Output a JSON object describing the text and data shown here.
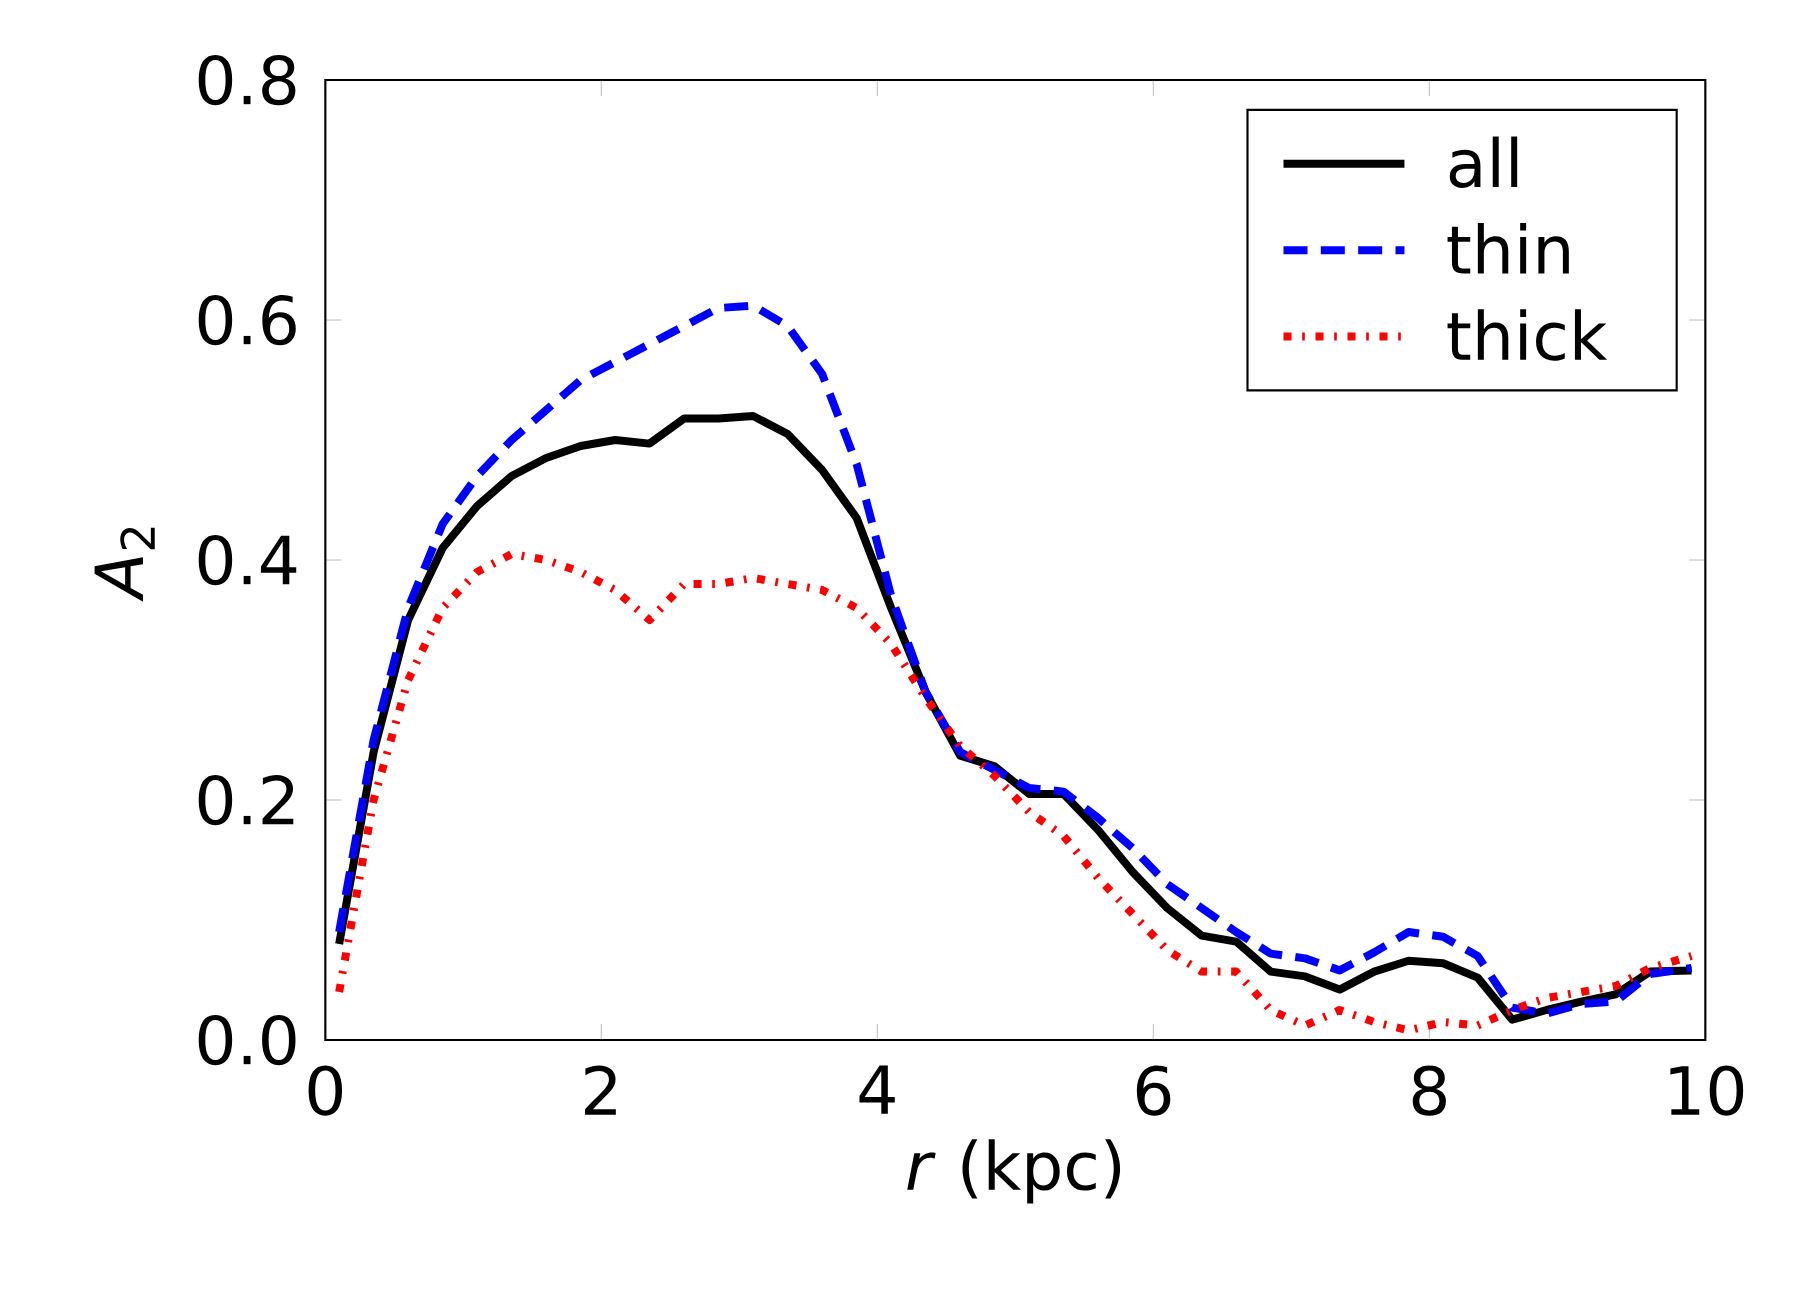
{
  "chart_data": {
    "type": "line",
    "xlabel": "*r* (kpc)",
    "ylabel": "*A*$_{2}$",
    "xlim": [
      0,
      10
    ],
    "ylim": [
      0,
      0.8
    ],
    "xticks": [
      0,
      2,
      4,
      6,
      8,
      10
    ],
    "yticks": [
      {
        "value": 0,
        "label": "0.0"
      },
      {
        "value": 0.2,
        "label": "0.2"
      },
      {
        "value": 0.4,
        "label": "0.4"
      },
      {
        "value": 0.6,
        "label": "0.6"
      },
      {
        "value": 0.8,
        "label": "0.8"
      }
    ],
    "x": [
      0.1,
      0.35,
      0.6,
      0.85,
      1.1,
      1.35,
      1.6,
      1.85,
      2.1,
      2.35,
      2.6,
      2.85,
      3.1,
      3.35,
      3.6,
      3.85,
      4.1,
      4.35,
      4.6,
      4.85,
      5.1,
      5.35,
      5.6,
      5.85,
      6.1,
      6.35,
      6.6,
      6.85,
      7.1,
      7.35,
      7.6,
      7.85,
      8.1,
      8.35,
      8.6,
      8.85,
      9.1,
      9.35,
      9.6,
      9.9
    ],
    "legend": "top right",
    "grid": false,
    "marker": "none",
    "series": [
      {
        "name": "all",
        "color": "#000000",
        "line_style": "solid",
        "values": [
          0.08,
          0.24,
          0.35,
          0.41,
          0.445,
          0.47,
          0.485,
          0.495,
          0.5,
          0.497,
          0.518,
          0.518,
          0.52,
          0.505,
          0.475,
          0.435,
          0.36,
          0.29,
          0.237,
          0.228,
          0.205,
          0.205,
          0.175,
          0.14,
          0.11,
          0.087,
          0.082,
          0.057,
          0.053,
          0.042,
          0.057,
          0.066,
          0.064,
          0.052,
          0.017,
          0.025,
          0.032,
          0.038,
          0.057,
          0.058
        ]
      },
      {
        "name": "thin",
        "color": "#0000ff",
        "line_style": "dashed",
        "values": [
          0.09,
          0.25,
          0.36,
          0.43,
          0.47,
          0.5,
          0.525,
          0.55,
          0.565,
          0.58,
          0.595,
          0.61,
          0.612,
          0.595,
          0.555,
          0.48,
          0.37,
          0.29,
          0.24,
          0.225,
          0.21,
          0.207,
          0.185,
          0.16,
          0.13,
          0.11,
          0.09,
          0.072,
          0.068,
          0.058,
          0.073,
          0.09,
          0.086,
          0.07,
          0.027,
          0.022,
          0.03,
          0.032,
          0.055,
          0.06
        ]
      },
      {
        "name": "thick",
        "color": "#ff0000",
        "line_style": "dotted",
        "values": [
          0.04,
          0.2,
          0.3,
          0.36,
          0.39,
          0.405,
          0.4,
          0.39,
          0.375,
          0.35,
          0.38,
          0.38,
          0.385,
          0.38,
          0.375,
          0.36,
          0.33,
          0.285,
          0.245,
          0.22,
          0.19,
          0.17,
          0.135,
          0.105,
          0.075,
          0.057,
          0.057,
          0.025,
          0.012,
          0.025,
          0.015,
          0.008,
          0.015,
          0.012,
          0.025,
          0.035,
          0.04,
          0.045,
          0.06,
          0.07
        ]
      }
    ]
  }
}
